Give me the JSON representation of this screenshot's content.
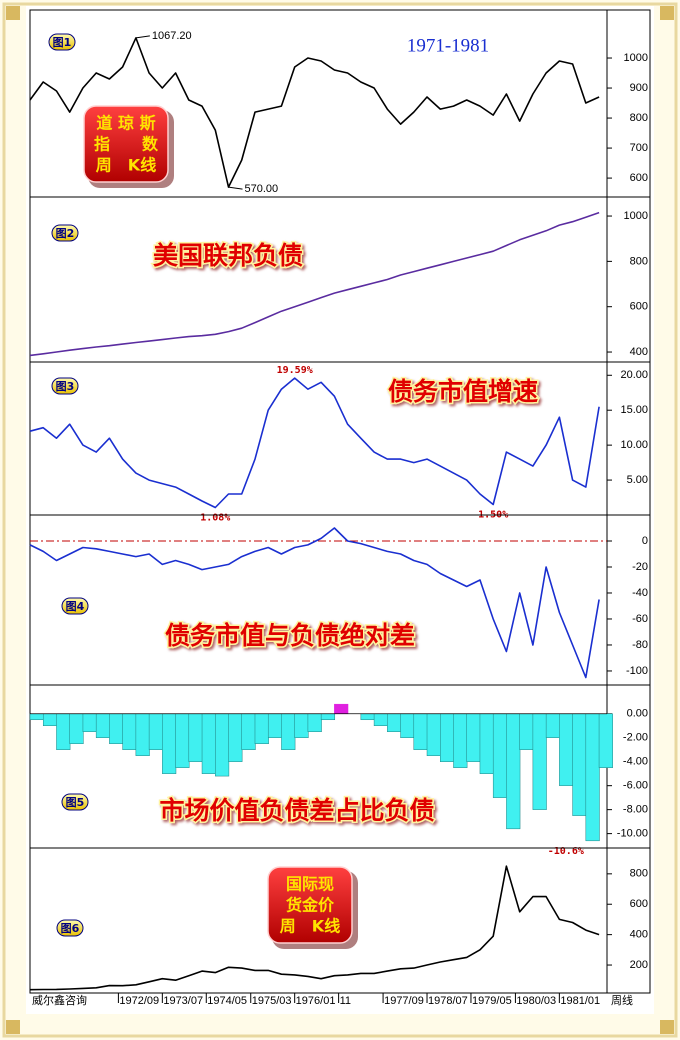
{
  "chart_data": [
    {
      "type": "line",
      "panel_label": "图1",
      "title": "1971-1981",
      "badge": [
        "道 琼 斯",
        "指　　数",
        "周　K线"
      ],
      "color": "#000000",
      "x": [
        1971,
        1971.25,
        1971.5,
        1971.75,
        1972,
        1972.25,
        1972.5,
        1972.75,
        1973,
        1973.25,
        1973.5,
        1973.75,
        1974,
        1974.25,
        1974.5,
        1974.75,
        1975,
        1975.25,
        1975.5,
        1975.75,
        1976,
        1976.25,
        1976.5,
        1976.75,
        1977,
        1977.25,
        1977.5,
        1977.75,
        1978,
        1978.25,
        1978.5,
        1978.75,
        1979,
        1979.25,
        1979.5,
        1979.75,
        1980,
        1980.25,
        1980.5,
        1980.75,
        1981,
        1981.25,
        1981.5,
        1981.75
      ],
      "values": [
        860,
        920,
        890,
        820,
        900,
        950,
        930,
        970,
        1067.2,
        950,
        900,
        950,
        860,
        840,
        760,
        570,
        660,
        820,
        830,
        840,
        970,
        1000,
        990,
        960,
        950,
        920,
        900,
        830,
        780,
        820,
        870,
        830,
        840,
        860,
        840,
        810,
        880,
        790,
        880,
        950,
        990,
        980,
        850,
        870
      ],
      "value_labels": [
        null,
        null,
        null,
        null,
        null,
        null,
        null,
        null,
        "1067.20",
        null,
        null,
        null,
        null,
        null,
        null,
        "570.00",
        null,
        null,
        null,
        null,
        null,
        null,
        null,
        null,
        null,
        null,
        null,
        null,
        null,
        null,
        null,
        null,
        null,
        null,
        null,
        null,
        null,
        null,
        null,
        null,
        null,
        null,
        null,
        null
      ],
      "xlim": [
        1971,
        1981.9
      ],
      "ylim": [
        537,
        1160
      ],
      "yticks": [
        600,
        700,
        800,
        900,
        1000
      ]
    },
    {
      "type": "line",
      "panel_label": "图2",
      "title": "美国联邦负债",
      "color": "#5a2ca0",
      "x": [
        1971,
        1971.25,
        1971.5,
        1971.75,
        1972,
        1972.25,
        1972.5,
        1972.75,
        1973,
        1973.25,
        1973.5,
        1973.75,
        1974,
        1974.25,
        1974.5,
        1974.75,
        1975,
        1975.25,
        1975.5,
        1975.75,
        1976,
        1976.25,
        1976.5,
        1976.75,
        1977,
        1977.25,
        1977.5,
        1977.75,
        1978,
        1978.25,
        1978.5,
        1978.75,
        1979,
        1979.25,
        1979.5,
        1979.75,
        1980,
        1980.25,
        1980.5,
        1980.75,
        1981,
        1981.25,
        1981.5,
        1981.75
      ],
      "values": [
        385,
        392,
        400,
        408,
        415,
        422,
        428,
        435,
        442,
        448,
        455,
        462,
        468,
        472,
        478,
        490,
        505,
        530,
        555,
        580,
        600,
        620,
        640,
        660,
        675,
        690,
        705,
        720,
        740,
        755,
        770,
        785,
        800,
        815,
        830,
        845,
        870,
        895,
        915,
        935,
        960,
        975,
        995,
        1015
      ],
      "xlim": [
        1971,
        1981.9
      ],
      "ylim": [
        356,
        1084
      ],
      "yticks": [
        400,
        600,
        800,
        1000
      ]
    },
    {
      "type": "line",
      "panel_label": "图3",
      "title": "债务市值增速",
      "color": "#1a2fd0",
      "x": [
        1971,
        1971.25,
        1971.5,
        1971.75,
        1972,
        1972.25,
        1972.5,
        1972.75,
        1973,
        1973.25,
        1973.5,
        1973.75,
        1974,
        1974.25,
        1974.5,
        1974.75,
        1975,
        1975.25,
        1975.5,
        1975.75,
        1976,
        1976.25,
        1976.5,
        1976.75,
        1977,
        1977.25,
        1977.5,
        1977.75,
        1978,
        1978.25,
        1978.5,
        1978.75,
        1979,
        1979.25,
        1979.5,
        1979.75,
        1980,
        1980.25,
        1980.5,
        1980.75,
        1981,
        1981.25,
        1981.5,
        1981.75
      ],
      "values": [
        12,
        12.5,
        11,
        13,
        10,
        9,
        11,
        8,
        6,
        5,
        4.5,
        4,
        3,
        2,
        1.08,
        3,
        3,
        8,
        15,
        18,
        19.59,
        18,
        19,
        17,
        13,
        11,
        9,
        8,
        8,
        7.5,
        8,
        7,
        6,
        5,
        3,
        1.5,
        9,
        8,
        7,
        10,
        14,
        5,
        4,
        15.5
      ],
      "value_labels": [
        null,
        null,
        null,
        null,
        null,
        null,
        null,
        null,
        null,
        null,
        null,
        null,
        null,
        null,
        "1.08%",
        null,
        null,
        null,
        null,
        null,
        "19.59%",
        null,
        null,
        null,
        null,
        null,
        null,
        null,
        null,
        null,
        null,
        null,
        null,
        null,
        null,
        "1.50%",
        null,
        null,
        null,
        null,
        null,
        null,
        null,
        null
      ],
      "xlim": [
        1971,
        1981.9
      ],
      "ylim": [
        0,
        21.9
      ],
      "yticks": [
        {
          "value": 5,
          "label": "5.00"
        },
        {
          "value": 10,
          "label": "10.00"
        },
        {
          "value": 15,
          "label": "15.00"
        },
        {
          "value": 20,
          "label": "20.00"
        }
      ]
    },
    {
      "type": "line",
      "panel_label": "图4",
      "title": "债务市值与负债绝对差",
      "color": "#1a2fd0",
      "reference_line": {
        "value": 0,
        "color": "#c00000"
      },
      "x": [
        1971,
        1971.25,
        1971.5,
        1971.75,
        1972,
        1972.25,
        1972.5,
        1972.75,
        1973,
        1973.25,
        1973.5,
        1973.75,
        1974,
        1974.25,
        1974.5,
        1974.75,
        1975,
        1975.25,
        1975.5,
        1975.75,
        1976,
        1976.25,
        1976.5,
        1976.75,
        1977,
        1977.25,
        1977.5,
        1977.75,
        1978,
        1978.25,
        1978.5,
        1978.75,
        1979,
        1979.25,
        1979.5,
        1979.75,
        1980,
        1980.25,
        1980.5,
        1980.75,
        1981,
        1981.25,
        1981.5,
        1981.75
      ],
      "values": [
        -3,
        -8,
        -15,
        -10,
        -5,
        -6,
        -8,
        -10,
        -12,
        -10,
        -18,
        -15,
        -18,
        -22,
        -20,
        -18,
        -12,
        -8,
        -5,
        -10,
        -5,
        -3,
        2,
        10,
        0,
        -2,
        -5,
        -8,
        -10,
        -15,
        -18,
        -25,
        -30,
        -35,
        -30,
        -60,
        -85,
        -40,
        -80,
        -20,
        -55,
        -80,
        -105,
        -45
      ],
      "xlim": [
        1971,
        1981.9
      ],
      "ylim": [
        -110.8,
        20
      ],
      "yticks": [
        -100,
        -80,
        -60,
        -40,
        -20,
        0
      ]
    },
    {
      "type": "area",
      "panel_label": "图5",
      "title": "市场价值负债差占比负债",
      "color": "#40f0f0",
      "positive_color": "#e020e0",
      "x": [
        1971,
        1971.25,
        1971.5,
        1971.75,
        1972,
        1972.25,
        1972.5,
        1972.75,
        1973,
        1973.25,
        1973.5,
        1973.75,
        1974,
        1974.25,
        1974.5,
        1974.75,
        1975,
        1975.25,
        1975.5,
        1975.75,
        1976,
        1976.25,
        1976.5,
        1976.75,
        1977,
        1977.25,
        1977.5,
        1977.75,
        1978,
        1978.25,
        1978.5,
        1978.75,
        1979,
        1979.25,
        1979.5,
        1979.75,
        1980,
        1980.25,
        1980.5,
        1980.75,
        1981,
        1981.25,
        1981.5,
        1981.75
      ],
      "values": [
        -0.5,
        -1,
        -3,
        -2.5,
        -1.5,
        -2,
        -2.5,
        -3,
        -3.5,
        -3,
        -5,
        -4.5,
        -4,
        -5,
        -5.2,
        -4,
        -3,
        -2.5,
        -2,
        -3,
        -2,
        -1.5,
        -0.5,
        0.8,
        0,
        -0.5,
        -1,
        -1.5,
        -2,
        -3,
        -3.5,
        -4,
        -4.5,
        -4,
        -5,
        -7,
        -9.6,
        -3,
        -8,
        -2,
        -6,
        -8.5,
        -10.6,
        -4.5
      ],
      "value_labels": [
        null,
        null,
        null,
        null,
        null,
        null,
        null,
        null,
        null,
        null,
        null,
        null,
        null,
        null,
        null,
        null,
        null,
        null,
        null,
        null,
        null,
        null,
        null,
        null,
        null,
        null,
        null,
        null,
        null,
        null,
        null,
        null,
        null,
        null,
        null,
        null,
        null,
        null,
        null,
        null,
        null,
        null,
        "-10.6%",
        null
      ],
      "xlim": [
        1971,
        1981.9
      ],
      "ylim": [
        -11.2,
        2.4
      ],
      "yticks": [
        {
          "value": -10,
          "label": "-10.00"
        },
        {
          "value": -8,
          "label": "-8.00"
        },
        {
          "value": -6,
          "label": "-6.00"
        },
        {
          "value": -4,
          "label": "-4.00"
        },
        {
          "value": -2,
          "label": "-2.00"
        },
        {
          "value": 0,
          "label": "0.00"
        }
      ]
    },
    {
      "type": "line",
      "panel_label": "图6",
      "badge": [
        "国际现",
        "货金价",
        "周　K线"
      ],
      "color": "#000000",
      "x": [
        1971,
        1971.25,
        1971.5,
        1971.75,
        1972,
        1972.25,
        1972.5,
        1972.75,
        1973,
        1973.25,
        1973.5,
        1973.75,
        1974,
        1974.25,
        1974.5,
        1974.75,
        1975,
        1975.25,
        1975.5,
        1975.75,
        1976,
        1976.25,
        1976.5,
        1976.75,
        1977,
        1977.25,
        1977.5,
        1977.75,
        1978,
        1978.25,
        1978.5,
        1978.75,
        1979,
        1979.25,
        1979.5,
        1979.75,
        1980,
        1980.25,
        1980.5,
        1980.75,
        1981,
        1981.25,
        1981.5,
        1981.75
      ],
      "values": [
        38,
        39,
        40,
        42,
        46,
        50,
        65,
        64,
        70,
        90,
        110,
        100,
        130,
        160,
        150,
        185,
        180,
        165,
        165,
        140,
        135,
        125,
        110,
        130,
        135,
        145,
        145,
        160,
        175,
        180,
        200,
        220,
        235,
        250,
        300,
        390,
        850,
        550,
        650,
        650,
        500,
        480,
        430,
        400
      ],
      "xlim": [
        1971,
        1981.9
      ],
      "ylim": [
        16,
        970
      ],
      "yticks": [
        200,
        400,
        600,
        800
      ],
      "x_axis_note": "威尔鑫咨询",
      "x_unit": "周线",
      "xticks": [
        {
          "value": 1972.67,
          "label": "1972/09"
        },
        {
          "value": 1973.5,
          "label": "1973/07"
        },
        {
          "value": 1974.33,
          "label": "1974/05"
        },
        {
          "value": 1975.17,
          "label": "1975/03"
        },
        {
          "value": 1976,
          "label": "1976/01"
        },
        {
          "value": 1976.83,
          "label": "11"
        },
        {
          "value": 1977.67,
          "label": "1977/09"
        },
        {
          "value": 1978.5,
          "label": "1978/07"
        },
        {
          "value": 1979.33,
          "label": "1979/05"
        },
        {
          "value": 1980.17,
          "label": "1980/03"
        },
        {
          "value": 1981,
          "label": "1981/01"
        }
      ]
    }
  ]
}
